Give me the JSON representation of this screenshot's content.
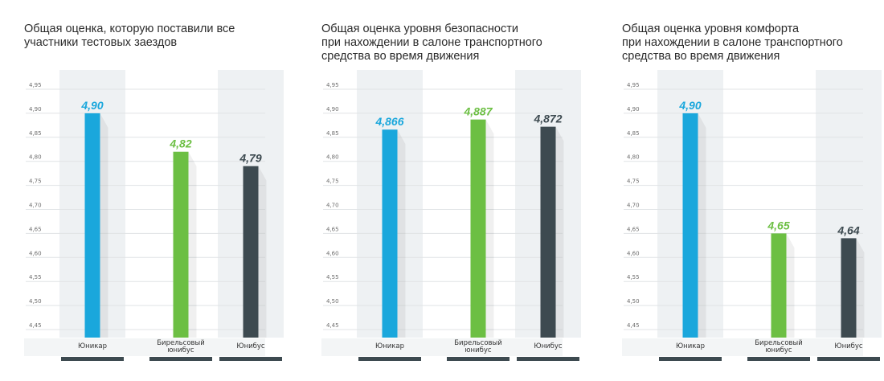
{
  "colors": {
    "blue": "#1aa7dc",
    "green": "#6cbf43",
    "dark": "#3d4a50",
    "stripe": "#eef1f3",
    "grid": "#e0e3e5",
    "axisbar": "#3d4a50"
  },
  "chart_data": [
    {
      "type": "bar",
      "title": "Общая оценка, которую поставили все\nучастники тестовых заездов",
      "categories": [
        "Юникар",
        "Бирельсовый\nюнибус",
        "Юнибус"
      ],
      "values": [
        4.9,
        4.82,
        4.79
      ],
      "value_labels": [
        "4,90",
        "4,82",
        "4,79"
      ],
      "bar_colors": [
        "#1aa7dc",
        "#6cbf43",
        "#3d4a50"
      ],
      "label_colors": [
        "#1aa7dc",
        "#6cbf43",
        "#3d4a50"
      ],
      "ylim": [
        4.45,
        4.95
      ],
      "yticks": [
        "4,45",
        "4,50",
        "4,55",
        "4,60",
        "4,65",
        "4,70",
        "4,75",
        "4,80",
        "4,85",
        "4,90",
        "4,95"
      ],
      "xlabel": "",
      "ylabel": "",
      "grid": true
    },
    {
      "type": "bar",
      "title": "Общая оценка уровня безопасности\nпри нахождении в салоне транспортного\nсредства во время движения",
      "categories": [
        "Юникар",
        "Бирельсовый\nюнибус",
        "Юнибус"
      ],
      "values": [
        4.866,
        4.887,
        4.872
      ],
      "value_labels": [
        "4,866",
        "4,887",
        "4,872"
      ],
      "bar_colors": [
        "#1aa7dc",
        "#6cbf43",
        "#3d4a50"
      ],
      "label_colors": [
        "#1aa7dc",
        "#6cbf43",
        "#3d4a50"
      ],
      "ylim": [
        4.45,
        4.95
      ],
      "yticks": [
        "4,45",
        "4,50",
        "4,55",
        "4,60",
        "4,65",
        "4,70",
        "4,75",
        "4,80",
        "4,85",
        "4,90",
        "4,95"
      ],
      "xlabel": "",
      "ylabel": "",
      "grid": true
    },
    {
      "type": "bar",
      "title": "Общая оценка уровня комфорта\nпри нахождении в салоне транспортного\nсредства во время движения",
      "categories": [
        "Юникар",
        "Бирельсовый\nюнибус",
        "Юнибус"
      ],
      "values": [
        4.9,
        4.65,
        4.64
      ],
      "value_labels": [
        "4,90",
        "4,65",
        "4,64"
      ],
      "bar_colors": [
        "#1aa7dc",
        "#6cbf43",
        "#3d4a50"
      ],
      "label_colors": [
        "#1aa7dc",
        "#6cbf43",
        "#3d4a50"
      ],
      "ylim": [
        4.45,
        4.95
      ],
      "yticks": [
        "4,45",
        "4,50",
        "4,55",
        "4,60",
        "4,65",
        "4,70",
        "4,75",
        "4,80",
        "4,85",
        "4,90",
        "4,95"
      ],
      "xlabel": "",
      "ylabel": "",
      "grid": true
    }
  ]
}
